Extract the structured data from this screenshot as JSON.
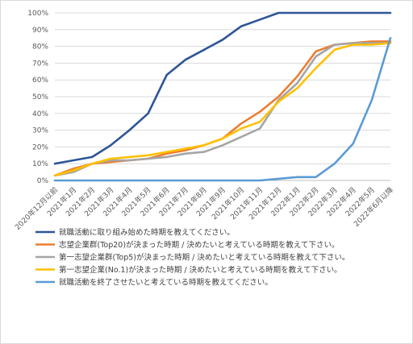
{
  "chart_data": {
    "type": "line",
    "categories": [
      "2020年12月以前",
      "2021年1月",
      "2021年2月",
      "2021年3月",
      "2021年4月",
      "2021年5月",
      "2021年6月",
      "2021年7月",
      "2021年8月",
      "2021年9月",
      "2021年10月",
      "2021年11月",
      "2021年12月",
      "2022年1月",
      "2022年2月",
      "2022年3月",
      "2022年4月",
      "2022年5月",
      "2022年6月以降"
    ],
    "ylim": [
      0,
      100
    ],
    "yticks": [
      "0%",
      "10%",
      "20%",
      "30%",
      "40%",
      "50%",
      "60%",
      "70%",
      "80%",
      "90%",
      "100%"
    ],
    "grid": true,
    "legend_position": "bottom",
    "series": [
      {
        "name": "就職活動に取り組み始めた時期を教えてください。",
        "color": "#2e5597",
        "values": [
          10,
          12,
          14,
          21,
          30,
          40,
          63,
          72,
          78,
          84,
          92,
          96,
          100,
          100,
          100,
          100,
          100,
          100,
          100
        ]
      },
      {
        "name": "志望企業群(Top20)が決まった時期 / 決めたいと考えている時期を教えて下さい。",
        "color": "#ed7d31",
        "values": [
          3,
          7,
          10,
          11,
          12,
          13,
          16,
          18,
          21,
          25,
          34,
          41,
          50,
          62,
          77,
          81,
          82,
          83,
          83
        ]
      },
      {
        "name": "第一志望企業群(Top5)が決まった時期 / 決めたいと考えている時期を教えて下さい。",
        "color": "#a5a5a5",
        "values": [
          3,
          5,
          10,
          12,
          12,
          13,
          14,
          16,
          17,
          21,
          26,
          31,
          48,
          58,
          74,
          81,
          82,
          82,
          82
        ]
      },
      {
        "name": "第一志望企業(No.1)が決まった時期 / 決めたいと考えている時期を教えて下さい。",
        "color": "#ffc000",
        "values": [
          3,
          6,
          10,
          13,
          14,
          15,
          17,
          19,
          21,
          25,
          31,
          35,
          47,
          55,
          67,
          78,
          81,
          81,
          82
        ]
      },
      {
        "name": "就職活動を終了させたいと考えている時期を教えてください。",
        "color": "#5b9bd5",
        "values": [
          0,
          0,
          0,
          0,
          0,
          0,
          0,
          0,
          0,
          0,
          0,
          0,
          1,
          2,
          2,
          10,
          22,
          48,
          85
        ]
      }
    ]
  }
}
